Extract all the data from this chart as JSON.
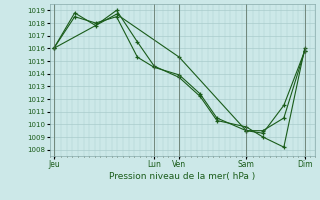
{
  "title": "Pression niveau de la mer( hPa )",
  "background_color": "#cce8e8",
  "grid_color": "#aacccc",
  "line_color": "#1a5c1a",
  "vline_color": "#556655",
  "ylim": [
    1007.5,
    1019.5
  ],
  "yticks": [
    1008,
    1009,
    1010,
    1011,
    1012,
    1013,
    1014,
    1015,
    1016,
    1017,
    1018,
    1019
  ],
  "day_labels": [
    "Jeu",
    "Lun",
    "Ven",
    "Sam",
    "Dim"
  ],
  "day_positions": [
    0.0,
    4.8,
    6.0,
    9.2,
    12.0
  ],
  "xlim": [
    -0.2,
    12.5
  ],
  "series1_x": [
    0,
    1,
    2,
    3,
    4,
    4.8,
    6.0,
    7,
    7.8,
    9.2,
    10,
    11,
    12
  ],
  "series1_y": [
    1016.0,
    1018.5,
    1018.0,
    1018.5,
    1015.3,
    1014.5,
    1013.9,
    1012.4,
    1010.5,
    1009.5,
    1009.5,
    1010.5,
    1015.8
  ],
  "series2_x": [
    0,
    1,
    2,
    3,
    4,
    4.8,
    6.0,
    7,
    7.8,
    9.2,
    10,
    11,
    12
  ],
  "series2_y": [
    1016.0,
    1018.8,
    1017.8,
    1019.0,
    1016.5,
    1014.6,
    1013.7,
    1012.2,
    1010.3,
    1009.8,
    1009.0,
    1008.2,
    1016.0
  ],
  "series3_x": [
    0,
    3,
    6.0,
    9.2,
    10,
    11,
    12
  ],
  "series3_y": [
    1016.0,
    1018.7,
    1015.3,
    1009.5,
    1009.3,
    1011.5,
    1015.8
  ],
  "marker_size": 3.5,
  "line_width": 0.8,
  "ytick_fontsize": 5,
  "xtick_fontsize": 5.5,
  "xlabel_fontsize": 6.5
}
